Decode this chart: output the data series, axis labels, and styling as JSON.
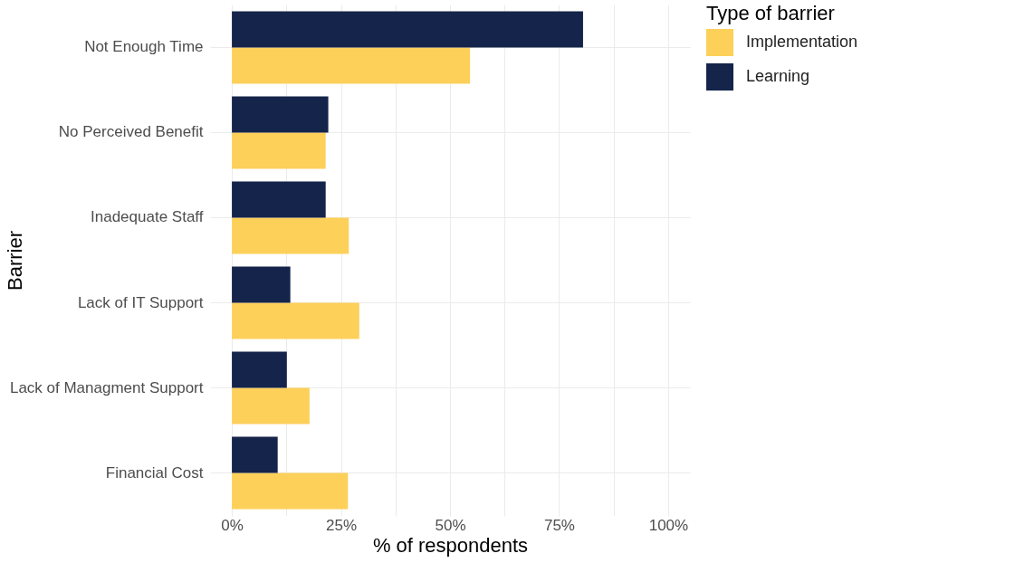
{
  "chart_data": {
    "type": "bar",
    "orientation": "horizontal",
    "xlabel": "% of respondents",
    "ylabel": "Barrier",
    "legend_title": "Type of barrier",
    "legend": "right",
    "grid": true,
    "categories": [
      "Not Enough Time",
      "No Perceived Benefit",
      "Inadequate Staff",
      "Lack of IT Support",
      "Lack of Managment Support",
      "Financial Cost"
    ],
    "series": [
      {
        "name": "Implementation",
        "color": "#fdd05a",
        "values": [
          54.6,
          21.5,
          26.8,
          29.2,
          17.8,
          26.6
        ]
      },
      {
        "name": "Learning",
        "color": "#15244a",
        "values": [
          80.5,
          22.1,
          21.5,
          13.4,
          12.6,
          10.5
        ]
      }
    ],
    "xlim": [
      -5,
      105
    ],
    "xticks": [
      {
        "value": 0,
        "label": "0%"
      },
      {
        "value": 12.5,
        "label": null
      },
      {
        "value": 25,
        "label": "25%"
      },
      {
        "value": 37.5,
        "label": null
      },
      {
        "value": 50,
        "label": "50%"
      },
      {
        "value": 62.5,
        "label": null
      },
      {
        "value": 75,
        "label": "75%"
      },
      {
        "value": 87.5,
        "label": null
      },
      {
        "value": 100,
        "label": "100%"
      }
    ]
  }
}
